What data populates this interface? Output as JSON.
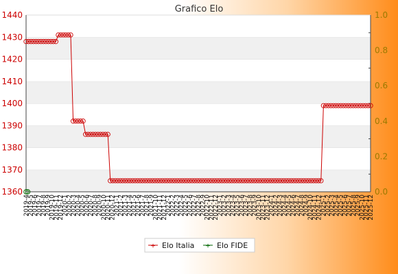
{
  "chart_data": {
    "type": "line",
    "title": "Grafico Elo",
    "xlabel": "",
    "ylabel": "",
    "ylim": [
      1360,
      1440
    ],
    "y_ticks": [
      1360,
      1370,
      1380,
      1390,
      1400,
      1410,
      1420,
      1430,
      1440
    ],
    "y2lim": [
      0.0,
      1.0
    ],
    "y2_ticks": [
      "0.0",
      "0.2",
      "0.4",
      "0.6",
      "0.8",
      "1.0"
    ],
    "grid": "horizontal bands",
    "legend_position": "bottom-center",
    "colors": {
      "italia": "#cc0000",
      "fide": "#006600"
    },
    "x_start_label": "2019-4",
    "x_end_label": "2025-12",
    "series": [
      {
        "name": "Elo Italia",
        "segments": [
          {
            "count": 13,
            "value": 1428
          },
          {
            "count": 6,
            "value": 1431
          },
          {
            "count": 5,
            "value": 1392
          },
          {
            "count": 10,
            "value": 1386
          },
          {
            "count": 86,
            "value": 1365
          },
          {
            "count": 20,
            "value": 1399
          }
        ]
      },
      {
        "name": "Elo FIDE",
        "points": [
          {
            "index": 0,
            "value": 1360
          }
        ]
      }
    ]
  }
}
